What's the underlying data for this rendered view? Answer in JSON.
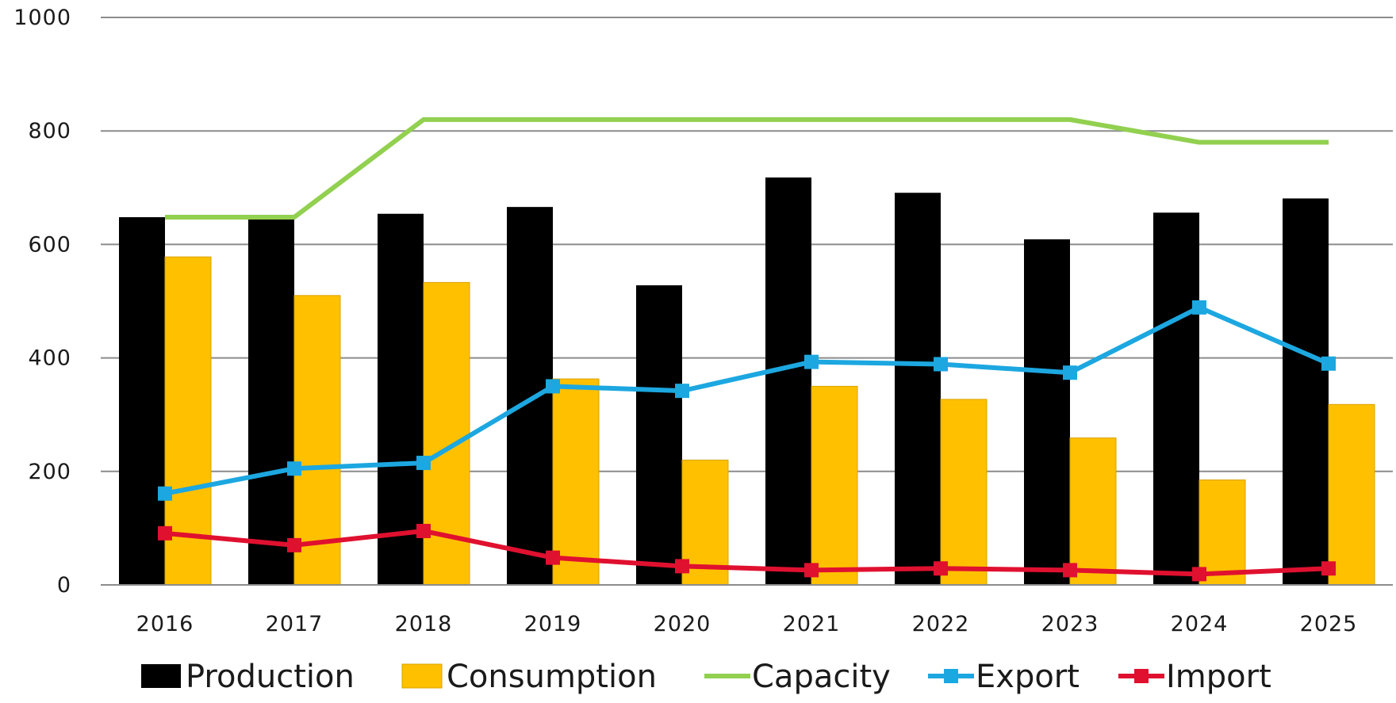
{
  "chart_data": {
    "type": "bar",
    "categories": [
      "2016",
      "2017",
      "2018",
      "2019",
      "2020",
      "2021",
      "2022",
      "2023",
      "2024",
      "2025"
    ],
    "ylim": [
      0,
      1000
    ],
    "yticks": [
      0,
      200,
      400,
      600,
      800,
      1000
    ],
    "grid": true,
    "legend_position": "bottom",
    "series": [
      {
        "name": "Production",
        "type": "bar",
        "color": "#000000",
        "values": [
          648,
          647,
          654,
          666,
          528,
          718,
          691,
          609,
          656,
          681
        ]
      },
      {
        "name": "Consumption",
        "type": "bar",
        "color": "#FFC000",
        "values": [
          578,
          510,
          533,
          363,
          220,
          350,
          327,
          259,
          185,
          318
        ]
      },
      {
        "name": "Capacity",
        "type": "line",
        "color": "#92D050",
        "marker": "none",
        "values": [
          648,
          648,
          820,
          820,
          820,
          820,
          820,
          820,
          780,
          780
        ]
      },
      {
        "name": "Export",
        "type": "line",
        "color": "#1CA7E0",
        "marker": "square",
        "values": [
          161,
          205,
          215,
          350,
          342,
          393,
          389,
          374,
          489,
          390
        ]
      },
      {
        "name": "Import",
        "type": "line",
        "color": "#E0102F",
        "marker": "square",
        "values": [
          91,
          70,
          95,
          48,
          33,
          26,
          29,
          26,
          19,
          29
        ]
      }
    ]
  }
}
